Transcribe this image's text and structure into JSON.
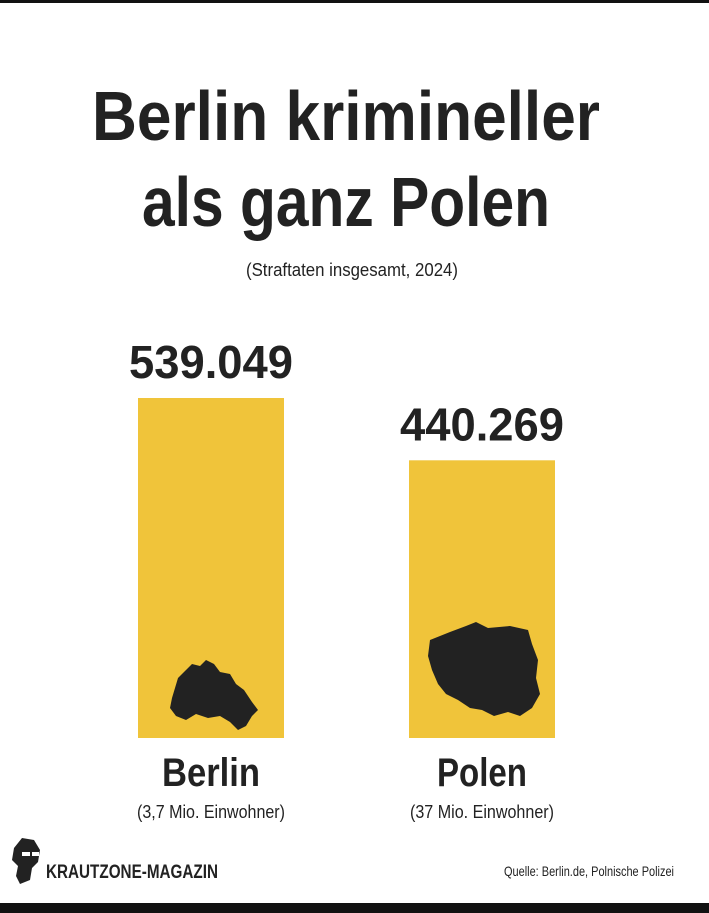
{
  "chart_data": {
    "type": "bar",
    "title": [
      "Berlin krimineller",
      "als ganz Polen"
    ],
    "subtitle": "(Straftaten insgesamt, 2024)",
    "categories": [
      "Berlin",
      "Polen"
    ],
    "category_notes": [
      "(3,7 Mio. Einwohner)",
      "(37 Mio. Einwohner)"
    ],
    "values": [
      539049,
      440269
    ],
    "value_labels": [
      "539.049",
      "440.269"
    ],
    "color": "#f0c43a",
    "brand": "KRAUTZONE-MAGAZIN",
    "source": "Quelle: Berlin.de, Polnische Polizei"
  }
}
